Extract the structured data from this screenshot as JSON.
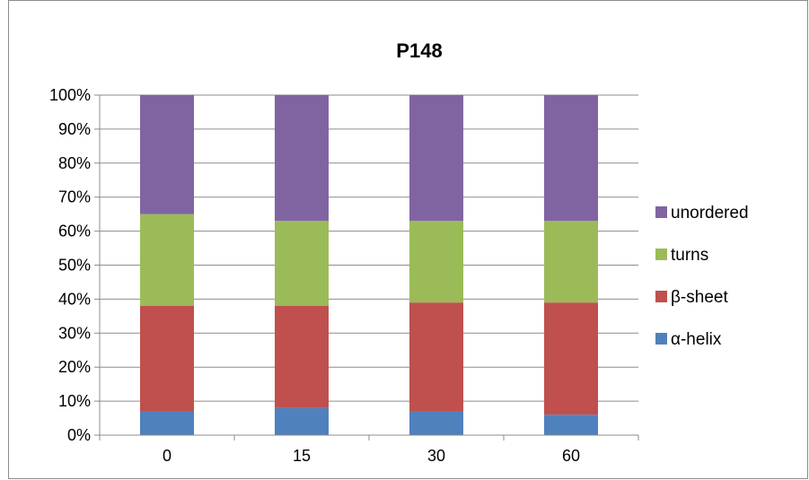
{
  "chart_data": {
    "type": "bar",
    "stacked": "percent",
    "title": "P148",
    "categories": [
      "0",
      "15",
      "30",
      "60"
    ],
    "series": [
      {
        "name": "α-helix",
        "color": "#4f81bd",
        "values": [
          7,
          8,
          7,
          6
        ]
      },
      {
        "name": "β-sheet",
        "color": "#c0504d",
        "values": [
          31,
          30,
          32,
          33
        ]
      },
      {
        "name": "turns",
        "color": "#9bbb59",
        "values": [
          27,
          25,
          24,
          24
        ]
      },
      {
        "name": "unordered",
        "color": "#8064a2",
        "values": [
          35,
          37,
          37,
          37
        ]
      }
    ],
    "ylim": [
      0,
      100
    ],
    "yticks": [
      "0%",
      "10%",
      "20%",
      "30%",
      "40%",
      "50%",
      "60%",
      "70%",
      "80%",
      "90%",
      "100%"
    ],
    "grid": true,
    "legend_position": "right"
  }
}
